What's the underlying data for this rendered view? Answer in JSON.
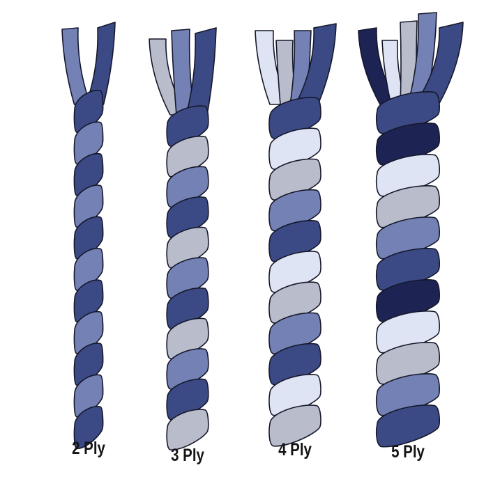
{
  "palette": {
    "dark_blue": "#3b4a85",
    "mid_blue": "#7381b5",
    "light_gray": "#b9bccb",
    "pale_blue": "#dfe4f4",
    "navy": "#1d2454",
    "outline": "#15172a"
  },
  "ropes": [
    {
      "label": "2 Ply",
      "plies": 2,
      "strand_colors": [
        "mid_blue",
        "dark_blue"
      ]
    },
    {
      "label": "3 Ply",
      "plies": 3,
      "strand_colors": [
        "light_gray",
        "mid_blue",
        "dark_blue"
      ]
    },
    {
      "label": "4 Ply",
      "plies": 4,
      "strand_colors": [
        "pale_blue",
        "light_gray",
        "mid_blue",
        "dark_blue"
      ]
    },
    {
      "label": "5 Ply",
      "plies": 5,
      "strand_colors": [
        "navy",
        "pale_blue",
        "light_gray",
        "mid_blue",
        "dark_blue"
      ]
    }
  ]
}
